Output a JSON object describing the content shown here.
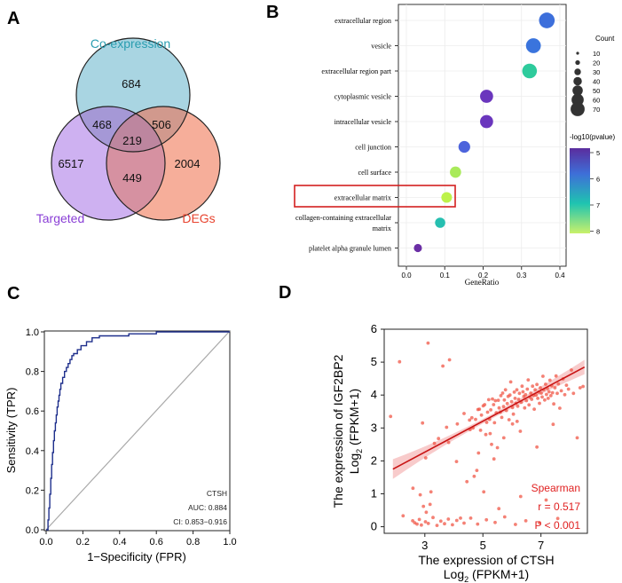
{
  "panel_labels": {
    "a": "A",
    "b": "B",
    "c": "C",
    "d": "D"
  },
  "chart_data": [
    {
      "type": "venn",
      "panel": "A",
      "sets": [
        {
          "name": "Co-expression",
          "color": "#2a9db0",
          "fill": "#a9d5e2"
        },
        {
          "name": "Targeted",
          "color": "#8a3fd6",
          "fill": "#c9a9ef"
        },
        {
          "name": "DEGs",
          "color": "#e8432e",
          "fill": "#f5a58f"
        }
      ],
      "regions": {
        "co_only": 684,
        "tg_only": 6517,
        "deg_only": 2004,
        "co_tg": 468,
        "co_deg": 506,
        "tg_deg": 449,
        "all": 219
      }
    },
    {
      "type": "scatter",
      "subtype": "dotplot",
      "panel": "B",
      "xlabel": "GeneRatio",
      "xlim": [
        0,
        0.4
      ],
      "xticks": [
        "0.0",
        "0.1",
        "0.2",
        "0.3",
        "0.4"
      ],
      "highlighted_term": "extracellular matrix",
      "terms": [
        {
          "label": "extracellular region",
          "ratio": 0.366,
          "count": 70,
          "color": "#3d6fdb"
        },
        {
          "label": "vesicle",
          "ratio": 0.331,
          "count": 60,
          "color": "#3a74dd"
        },
        {
          "label": "extracellular region part",
          "ratio": 0.321,
          "count": 58,
          "color": "#2ecb9c"
        },
        {
          "label": "cytoplasmic vesicle",
          "ratio": 0.209,
          "count": 40,
          "color": "#6a36bd"
        },
        {
          "label": "intracellular vesicle",
          "ratio": 0.209,
          "count": 40,
          "color": "#6a36bd"
        },
        {
          "label": "cell junction",
          "ratio": 0.151,
          "count": 28,
          "color": "#4d64dc"
        },
        {
          "label": "cell surface",
          "ratio": 0.128,
          "count": 24,
          "color": "#a9ea5a"
        },
        {
          "label": "extracellular matrix",
          "ratio": 0.105,
          "count": 20,
          "color": "#bdf24a"
        },
        {
          "label": "collagen-containing extracellular matrix",
          "ratio": 0.088,
          "count": 17,
          "color": "#26bfb0"
        },
        {
          "label": "platelet alpha granule lumen",
          "ratio": 0.03,
          "count": 6,
          "color": "#6b2fa5"
        }
      ],
      "size_legend": {
        "title": "Count",
        "values": [
          "10",
          "20",
          "30",
          "40",
          "50",
          "60",
          "70"
        ]
      },
      "color_legend": {
        "title": "-log10(pvalue)",
        "ticks": [
          "5",
          "6",
          "7",
          "8"
        ]
      }
    },
    {
      "type": "line",
      "subtype": "roc",
      "panel": "C",
      "xlabel": "1−Specificity (FPR)",
      "ylabel": "Sensitivity (TPR)",
      "xlim": [
        0,
        1
      ],
      "ylim": [
        0,
        1
      ],
      "xticks": [
        "0.0",
        "0.2",
        "0.4",
        "0.6",
        "0.8",
        "1.0"
      ],
      "yticks": [
        "0.0",
        "0.2",
        "0.4",
        "0.6",
        "0.8",
        "1.0"
      ],
      "annotation": {
        "name": "CTSH",
        "auc": "AUC: 0.884",
        "ci": "CI: 0.853−0.916"
      },
      "fpr": [
        0,
        0.01,
        0.01,
        0.015,
        0.015,
        0.02,
        0.02,
        0.025,
        0.025,
        0.03,
        0.03,
        0.035,
        0.035,
        0.04,
        0.04,
        0.045,
        0.045,
        0.05,
        0.05,
        0.055,
        0.055,
        0.06,
        0.06,
        0.065,
        0.065,
        0.07,
        0.07,
        0.075,
        0.075,
        0.08,
        0.08,
        0.09,
        0.09,
        0.1,
        0.1,
        0.11,
        0.11,
        0.12,
        0.12,
        0.13,
        0.13,
        0.14,
        0.14,
        0.15,
        0.15,
        0.17,
        0.17,
        0.19,
        0.19,
        0.22,
        0.22,
        0.25,
        0.25,
        0.29,
        0.29,
        0.45,
        0.45,
        0.6,
        0.6,
        1.0
      ],
      "tpr": [
        0,
        0,
        0.05,
        0.05,
        0.11,
        0.11,
        0.18,
        0.18,
        0.26,
        0.26,
        0.33,
        0.33,
        0.39,
        0.39,
        0.45,
        0.45,
        0.5,
        0.5,
        0.54,
        0.54,
        0.58,
        0.58,
        0.62,
        0.62,
        0.65,
        0.65,
        0.68,
        0.68,
        0.71,
        0.71,
        0.74,
        0.74,
        0.77,
        0.77,
        0.8,
        0.8,
        0.82,
        0.82,
        0.84,
        0.84,
        0.86,
        0.86,
        0.88,
        0.88,
        0.89,
        0.89,
        0.91,
        0.91,
        0.93,
        0.93,
        0.95,
        0.95,
        0.97,
        0.97,
        0.98,
        0.98,
        0.99,
        0.99,
        1.0,
        1.0
      ]
    },
    {
      "type": "scatter",
      "panel": "D",
      "xlabel": "The expression of CTSH",
      "xlabel2": "Log",
      "ylabel": "The expression of IGF2BP2",
      "ylabel2": "Log",
      "log_sub": "2",
      "log_unit": " (FPKM+1)",
      "xlim": [
        1.6,
        8.6
      ],
      "ylim": [
        -0.2,
        6
      ],
      "xticks": [
        "3",
        "5",
        "7"
      ],
      "yticks": [
        "0",
        "1",
        "2",
        "3",
        "4",
        "5",
        "6"
      ],
      "regression": {
        "x": [
          1.9,
          8.5
        ],
        "y": [
          1.75,
          4.85
        ],
        "band_start": 0.3,
        "band_mid": 0.07,
        "band_end": 0.22
      },
      "stats": {
        "method": "Spearman",
        "r": "r = 0.517",
        "p": "P < 0.001"
      },
      "points": [
        [
          2.13,
          5.01
        ],
        [
          2.59,
          1.17
        ],
        [
          2.84,
          0.97
        ],
        [
          2.92,
          3.15
        ],
        [
          3.03,
          2.09
        ],
        [
          3.11,
          5.58
        ],
        [
          3.21,
          1.06
        ],
        [
          3.33,
          2.53
        ],
        [
          3.62,
          4.88
        ],
        [
          3.82,
          2.56
        ],
        [
          3.85,
          5.07
        ],
        [
          4.09,
          1.98
        ],
        [
          4.12,
          3.12
        ],
        [
          4.23,
          0.26
        ],
        [
          4.35,
          3.44
        ],
        [
          4.45,
          1.37
        ],
        [
          4.54,
          3.24
        ],
        [
          4.56,
          2.95
        ],
        [
          4.62,
          3.31
        ],
        [
          4.66,
          3.0
        ],
        [
          4.7,
          1.53
        ],
        [
          4.75,
          3.26
        ],
        [
          4.79,
          1.71
        ],
        [
          4.83,
          3.56
        ],
        [
          4.88,
          3.57
        ],
        [
          4.92,
          2.93
        ],
        [
          4.95,
          3.39
        ],
        [
          5.01,
          3.67
        ],
        [
          5.03,
          1.06
        ],
        [
          5.06,
          3.71
        ],
        [
          5.1,
          2.8
        ],
        [
          5.13,
          3.17
        ],
        [
          5.16,
          3.48
        ],
        [
          5.2,
          3.86
        ],
        [
          5.23,
          3.26
        ],
        [
          5.27,
          3.55
        ],
        [
          5.3,
          2.5
        ],
        [
          5.33,
          3.88
        ],
        [
          5.37,
          3.71
        ],
        [
          5.4,
          3.16
        ],
        [
          5.43,
          3.83
        ],
        [
          5.46,
          3.46
        ],
        [
          5.5,
          2.4
        ],
        [
          5.53,
          3.84
        ],
        [
          5.56,
          3.61
        ],
        [
          5.6,
          3.48
        ],
        [
          5.62,
          3.98
        ],
        [
          5.65,
          3.32
        ],
        [
          5.68,
          4.06
        ],
        [
          5.71,
          3.65
        ],
        [
          5.74,
          3.85
        ],
        [
          5.78,
          4.16
        ],
        [
          5.81,
          3.53
        ],
        [
          5.84,
          3.74
        ],
        [
          5.87,
          3.96
        ],
        [
          5.9,
          3.25
        ],
        [
          5.93,
          4.0
        ],
        [
          5.96,
          4.4
        ],
        [
          5.99,
          3.8
        ],
        [
          6.02,
          3.62
        ],
        [
          6.05,
          3.42
        ],
        [
          6.08,
          4.09
        ],
        [
          6.11,
          3.9
        ],
        [
          6.14,
          3.75
        ],
        [
          6.17,
          4.16
        ],
        [
          6.2,
          3.66
        ],
        [
          6.23,
          3.87
        ],
        [
          6.26,
          4.05
        ],
        [
          6.29,
          2.9
        ],
        [
          6.32,
          3.78
        ],
        [
          6.35,
          4.27
        ],
        [
          6.38,
          4.1
        ],
        [
          6.41,
          3.96
        ],
        [
          6.44,
          3.61
        ],
        [
          6.47,
          4.01
        ],
        [
          6.5,
          3.83
        ],
        [
          6.53,
          4.18
        ],
        [
          6.56,
          4.46
        ],
        [
          6.59,
          3.7
        ],
        [
          6.62,
          3.94
        ],
        [
          6.65,
          4.06
        ],
        [
          6.68,
          3.87
        ],
        [
          6.71,
          4.27
        ],
        [
          6.74,
          3.99
        ],
        [
          6.77,
          3.57
        ],
        [
          6.8,
          4.16
        ],
        [
          6.83,
          4.0
        ],
        [
          6.86,
          4.32
        ],
        [
          6.89,
          3.9
        ],
        [
          6.92,
          4.09
        ],
        [
          6.95,
          3.75
        ],
        [
          6.98,
          4.22
        ],
        [
          7.01,
          4.06
        ],
        [
          7.04,
          3.94
        ],
        [
          7.07,
          4.57
        ],
        [
          7.1,
          4.16
        ],
        [
          7.13,
          3.85
        ],
        [
          7.16,
          4.33
        ],
        [
          7.19,
          4.02
        ],
        [
          7.22,
          4.2
        ],
        [
          7.25,
          3.9
        ],
        [
          7.28,
          4.1
        ],
        [
          7.31,
          4.45
        ],
        [
          7.34,
          3.98
        ],
        [
          7.37,
          4.28
        ],
        [
          7.4,
          4.07
        ],
        [
          7.44,
          3.73
        ],
        [
          7.48,
          4.22
        ],
        [
          7.52,
          4.58
        ],
        [
          7.56,
          4.05
        ],
        [
          7.6,
          4.34
        ],
        [
          7.65,
          3.6
        ],
        [
          7.7,
          4.13
        ],
        [
          7.76,
          4.49
        ],
        [
          7.82,
          4.01
        ],
        [
          7.88,
          4.3
        ],
        [
          7.95,
          4.18
        ],
        [
          8.05,
          4.76
        ],
        [
          8.12,
          4.05
        ],
        [
          8.25,
          2.7
        ],
        [
          8.35,
          4.22
        ],
        [
          8.45,
          4.26
        ],
        [
          5.38,
          2.06
        ],
        [
          5.72,
          2.7
        ],
        [
          6.18,
          3.2
        ],
        [
          6.86,
          2.42
        ],
        [
          7.42,
          3.11
        ],
        [
          4.85,
          2.24
        ],
        [
          5.25,
          2.83
        ],
        [
          6.02,
          3.12
        ],
        [
          3.47,
          2.68
        ],
        [
          3.75,
          3.02
        ],
        [
          2.58,
          0.18
        ],
        [
          2.65,
          0.12
        ],
        [
          2.73,
          0.08
        ],
        [
          2.81,
          0.22
        ],
        [
          2.88,
          0.05
        ],
        [
          3.02,
          0.15
        ],
        [
          3.12,
          0.1
        ],
        [
          3.28,
          0.28
        ],
        [
          3.42,
          0.04
        ],
        [
          3.55,
          0.17
        ],
        [
          3.68,
          0.09
        ],
        [
          3.81,
          0.23
        ],
        [
          3.95,
          0.06
        ],
        [
          4.1,
          0.19
        ],
        [
          4.35,
          0.11
        ],
        [
          4.58,
          0.26
        ],
        [
          4.82,
          0.08
        ],
        [
          5.12,
          0.21
        ],
        [
          5.42,
          0.13
        ],
        [
          5.75,
          0.3
        ],
        [
          6.12,
          0.07
        ],
        [
          6.48,
          0.18
        ],
        [
          6.95,
          0.12
        ],
        [
          7.58,
          0.25
        ],
        [
          2.95,
          0.62
        ],
        [
          3.05,
          0.44
        ],
        [
          3.18,
          0.68
        ],
        [
          5.55,
          0.55
        ],
        [
          6.3,
          0.92
        ],
        [
          7.18,
          0.81
        ],
        [
          2.25,
          0.33
        ],
        [
          1.82,
          3.35
        ]
      ]
    }
  ]
}
